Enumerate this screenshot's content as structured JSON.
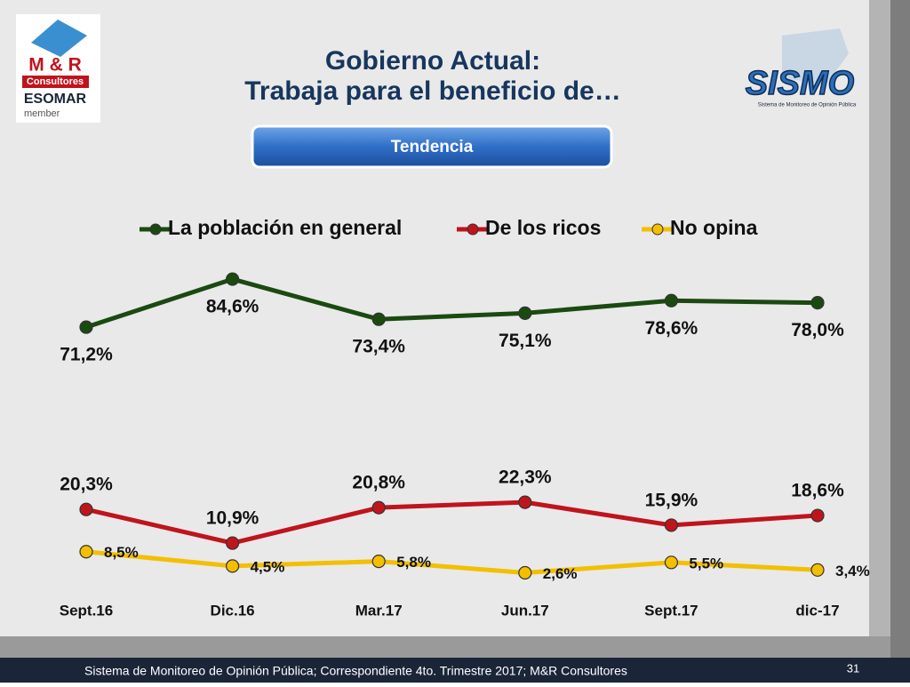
{
  "header": {
    "title_line1": "Gobierno Actual:",
    "title_line2": "Trabaja para el beneficio de…",
    "button": "Tendencia"
  },
  "logos": {
    "mr": "M & R",
    "mr_sub": "Consultores",
    "esomar": "ESOMAR",
    "member": "member",
    "sismo": "SISMO",
    "sismo_sub": "Sistema de Monitoreo de Opinión Pública"
  },
  "footer": {
    "text": "Sistema de Monitoreo de Opinión Pública; Correspondiente 4to. Trimestre 2017; M&R Consultores",
    "page": "31"
  },
  "chart_data": {
    "type": "line",
    "categories": [
      "Sept.16",
      "Dic.16",
      "Mar.17",
      "Jun.17",
      "Sept.17",
      "dic-17"
    ],
    "ylim": [
      0,
      100
    ],
    "legend": "top",
    "series": [
      {
        "name": "La población en general",
        "color": "#1b4a10",
        "values": [
          71.2,
          84.6,
          73.4,
          75.1,
          78.6,
          78.0
        ],
        "value_labels": [
          "71,2%",
          "84,6%",
          "73,4%",
          "75,1%",
          "78,6%",
          "78,0%"
        ]
      },
      {
        "name": "De los ricos",
        "color": "#c0141c",
        "values": [
          20.3,
          10.9,
          20.8,
          22.3,
          15.9,
          18.6
        ],
        "value_labels": [
          "20,3%",
          "10,9%",
          "20,8%",
          "22,3%",
          "15,9%",
          "18,6%"
        ]
      },
      {
        "name": "No opina",
        "color": "#f3bf00",
        "values": [
          8.5,
          4.5,
          5.8,
          2.6,
          5.5,
          3.4
        ],
        "value_labels": [
          "8,5%",
          "4,5%",
          "5,8%",
          "2,6%",
          "5,5%",
          "3,4%"
        ]
      }
    ]
  }
}
